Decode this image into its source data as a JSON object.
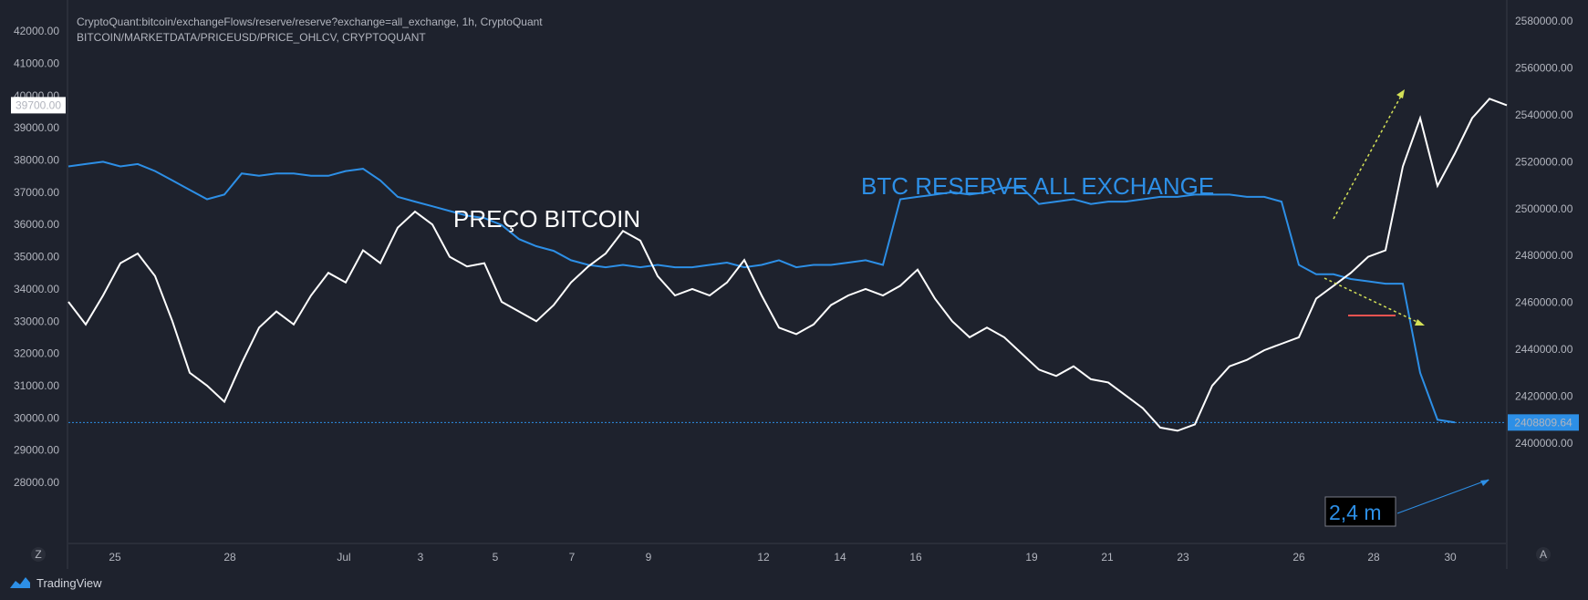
{
  "header": {
    "line1": "CryptoQuant:bitcoin/exchangeFlows/reserve/reserve?exchange=all_exchange, 1h, CryptoQuant",
    "line2": "BITCOIN/MARKETDATA/PRICEUSD/PRICE_OHLCV, CRYPTOQUANT"
  },
  "brand": {
    "name": "TradingView",
    "icon": "tradingview-logo-icon"
  },
  "axis_buttons": {
    "left": "Z",
    "right": "A"
  },
  "colors": {
    "background": "#1e222d",
    "price": "#ffffff",
    "reserve": "#2d8fe6",
    "trend_up": "#d4e157",
    "red_line": "#ef5350",
    "text": "#b2b5be"
  },
  "chart_data": {
    "type": "line",
    "title": "",
    "x_ticks": [
      "25",
      "28",
      "Jul",
      "3",
      "5",
      "7",
      "9",
      "12",
      "14",
      "16",
      "19",
      "21",
      "23",
      "26",
      "28",
      "30"
    ],
    "left_axis": {
      "ticks": [
        "42000.00",
        "41000.00",
        "40000.00",
        "39000.00",
        "38000.00",
        "37000.00",
        "36000.00",
        "35000.00",
        "34000.00",
        "33000.00",
        "32000.00",
        "31000.00",
        "30000.00",
        "29000.00",
        "28000.00"
      ],
      "range": [
        27500,
        42100
      ],
      "marker_label": "39700.00",
      "marker_value": 39700
    },
    "right_axis": {
      "ticks": [
        "2580000.00",
        "2560000.00",
        "2540000.00",
        "2520000.00",
        "2500000.00",
        "2480000.00",
        "2460000.00",
        "2440000.00",
        "2420000.00",
        "2400000.00"
      ],
      "range": [
        2387000,
        2584000
      ],
      "last_value_label": "2408809.64",
      "last_value": 2408809.64
    },
    "series": [
      {
        "name": "PREÇO BITCOIN",
        "color": "#ffffff",
        "axis": "left",
        "points": [
          [
            0,
            33600
          ],
          [
            0.5,
            32900
          ],
          [
            1,
            33800
          ],
          [
            1.5,
            34800
          ],
          [
            2,
            35100
          ],
          [
            2.5,
            34400
          ],
          [
            3,
            33000
          ],
          [
            3.5,
            31400
          ],
          [
            4,
            31000
          ],
          [
            4.5,
            30500
          ],
          [
            5,
            31700
          ],
          [
            5.5,
            32800
          ],
          [
            6,
            33300
          ],
          [
            6.5,
            32900
          ],
          [
            7,
            33800
          ],
          [
            7.5,
            34500
          ],
          [
            8,
            34200
          ],
          [
            8.5,
            35200
          ],
          [
            9,
            34800
          ],
          [
            9.5,
            35900
          ],
          [
            10,
            36400
          ],
          [
            10.5,
            36000
          ],
          [
            11,
            35000
          ],
          [
            11.5,
            34700
          ],
          [
            12,
            34800
          ],
          [
            12.5,
            33600
          ],
          [
            13,
            33300
          ],
          [
            13.5,
            33000
          ],
          [
            14,
            33500
          ],
          [
            14.5,
            34200
          ],
          [
            15,
            34700
          ],
          [
            15.5,
            35100
          ],
          [
            16,
            35800
          ],
          [
            16.5,
            35500
          ],
          [
            17,
            34400
          ],
          [
            17.5,
            33800
          ],
          [
            18,
            34000
          ],
          [
            18.5,
            33800
          ],
          [
            19,
            34200
          ],
          [
            19.5,
            34900
          ],
          [
            20,
            33800
          ],
          [
            20.5,
            32800
          ],
          [
            21,
            32600
          ],
          [
            21.5,
            32900
          ],
          [
            22,
            33500
          ],
          [
            22.5,
            33800
          ],
          [
            23,
            34000
          ],
          [
            23.5,
            33800
          ],
          [
            24,
            34100
          ],
          [
            24.5,
            34600
          ],
          [
            25,
            33700
          ],
          [
            25.5,
            33000
          ],
          [
            26,
            32500
          ],
          [
            26.5,
            32800
          ],
          [
            27,
            32500
          ],
          [
            27.5,
            32000
          ],
          [
            28,
            31500
          ],
          [
            28.5,
            31300
          ],
          [
            29,
            31600
          ],
          [
            29.5,
            31200
          ],
          [
            30,
            31100
          ],
          [
            30.5,
            30700
          ],
          [
            31,
            30300
          ],
          [
            31.5,
            29700
          ],
          [
            32,
            29600
          ],
          [
            32.5,
            29800
          ],
          [
            33,
            31000
          ],
          [
            33.5,
            31600
          ],
          [
            34,
            31800
          ],
          [
            34.5,
            32100
          ],
          [
            35,
            32300
          ],
          [
            35.5,
            32500
          ],
          [
            36,
            33700
          ],
          [
            36.5,
            34100
          ],
          [
            37,
            34500
          ],
          [
            37.5,
            35000
          ],
          [
            38,
            35200
          ],
          [
            38.5,
            37800
          ],
          [
            39,
            39300
          ],
          [
            39.5,
            37200
          ],
          [
            40,
            38200
          ],
          [
            40.5,
            39300
          ],
          [
            41,
            39900
          ],
          [
            41.5,
            39700
          ]
        ]
      },
      {
        "name": "BTC RESERVE ALL EXCHANGE",
        "color": "#2d8fe6",
        "axis": "right",
        "points": [
          [
            0,
            2518000
          ],
          [
            0.5,
            2519000
          ],
          [
            1,
            2520000
          ],
          [
            1.5,
            2518000
          ],
          [
            2,
            2519000
          ],
          [
            2.5,
            2516000
          ],
          [
            3,
            2512000
          ],
          [
            3.5,
            2508000
          ],
          [
            4,
            2504000
          ],
          [
            4.5,
            2506000
          ],
          [
            5,
            2515000
          ],
          [
            5.5,
            2514000
          ],
          [
            6,
            2515000
          ],
          [
            6.5,
            2515000
          ],
          [
            7,
            2514000
          ],
          [
            7.5,
            2514000
          ],
          [
            8,
            2516000
          ],
          [
            8.5,
            2517000
          ],
          [
            9,
            2512000
          ],
          [
            9.5,
            2505000
          ],
          [
            10,
            2503000
          ],
          [
            10.5,
            2501000
          ],
          [
            11,
            2499000
          ],
          [
            11.5,
            2497000
          ],
          [
            12,
            2496000
          ],
          [
            12.5,
            2493000
          ],
          [
            13,
            2487000
          ],
          [
            13.5,
            2484000
          ],
          [
            14,
            2482000
          ],
          [
            14.5,
            2478000
          ],
          [
            15,
            2476000
          ],
          [
            15.5,
            2475000
          ],
          [
            16,
            2476000
          ],
          [
            16.5,
            2475000
          ],
          [
            17,
            2476000
          ],
          [
            17.5,
            2475000
          ],
          [
            18,
            2475000
          ],
          [
            18.5,
            2476000
          ],
          [
            19,
            2477000
          ],
          [
            19.5,
            2475000
          ],
          [
            20,
            2476000
          ],
          [
            20.5,
            2478000
          ],
          [
            21,
            2475000
          ],
          [
            21.5,
            2476000
          ],
          [
            22,
            2476000
          ],
          [
            22.5,
            2477000
          ],
          [
            23,
            2478000
          ],
          [
            23.5,
            2476000
          ],
          [
            24,
            2504000
          ],
          [
            24.5,
            2505000
          ],
          [
            25,
            2506000
          ],
          [
            25.5,
            2507000
          ],
          [
            26,
            2506000
          ],
          [
            26.5,
            2507000
          ],
          [
            27,
            2509000
          ],
          [
            27.5,
            2509000
          ],
          [
            28,
            2502000
          ],
          [
            28.5,
            2503000
          ],
          [
            29,
            2504000
          ],
          [
            29.5,
            2502000
          ],
          [
            30,
            2503000
          ],
          [
            30.5,
            2503000
          ],
          [
            31,
            2504000
          ],
          [
            31.5,
            2505000
          ],
          [
            32,
            2505000
          ],
          [
            32.5,
            2506000
          ],
          [
            33,
            2506000
          ],
          [
            33.5,
            2506000
          ],
          [
            34,
            2505000
          ],
          [
            34.5,
            2505000
          ],
          [
            35,
            2503000
          ],
          [
            35.5,
            2476000
          ],
          [
            36,
            2472000
          ],
          [
            36.5,
            2472000
          ],
          [
            37,
            2470000
          ],
          [
            37.5,
            2469000
          ],
          [
            38,
            2468000
          ],
          [
            38.5,
            2468000
          ],
          [
            39,
            2430000
          ],
          [
            39.5,
            2410000
          ],
          [
            40,
            2408809.64
          ]
        ]
      }
    ],
    "annotations": [
      {
        "text": "PREÇO BITCOIN",
        "color": "#ffffff"
      },
      {
        "text": "BTC RESERVE ALL EXCHANGE",
        "color": "#2d8fe6"
      },
      {
        "text": "2,4 m",
        "color": "#2d8fe6"
      }
    ],
    "grid": false,
    "legend": "none"
  }
}
